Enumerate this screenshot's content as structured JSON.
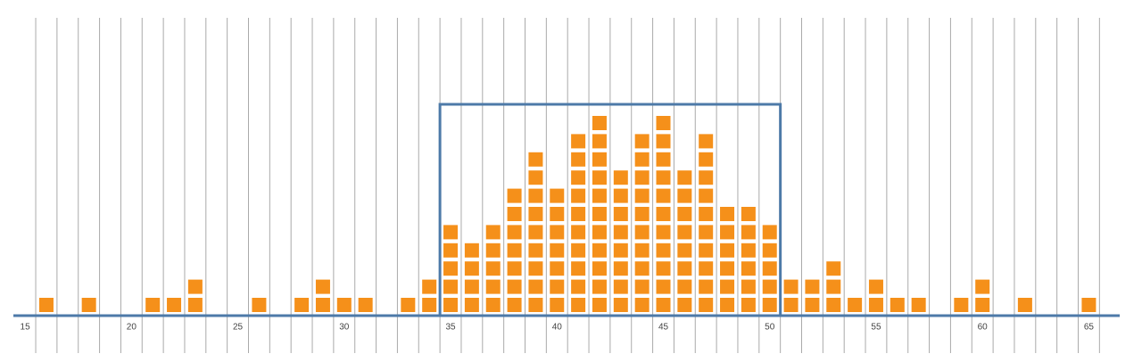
{
  "chart_data": {
    "type": "dot",
    "x": [
      15,
      16,
      17,
      18,
      19,
      20,
      21,
      22,
      23,
      24,
      25,
      26,
      27,
      28,
      29,
      30,
      31,
      32,
      33,
      34,
      35,
      36,
      37,
      38,
      39,
      40,
      41,
      42,
      43,
      44,
      45,
      46,
      47,
      48,
      49,
      50,
      51,
      52,
      53,
      54,
      55,
      56,
      57,
      58,
      59,
      60,
      61,
      62,
      63,
      64,
      65
    ],
    "values": [
      0,
      1,
      0,
      1,
      0,
      0,
      1,
      1,
      2,
      0,
      0,
      1,
      0,
      1,
      2,
      1,
      1,
      0,
      1,
      2,
      5,
      4,
      5,
      7,
      9,
      7,
      10,
      11,
      8,
      10,
      11,
      8,
      10,
      6,
      6,
      5,
      2,
      2,
      3,
      1,
      2,
      1,
      1,
      0,
      1,
      2,
      0,
      1,
      0,
      0,
      1
    ],
    "color": "#f5901a",
    "xlim": [
      14.45,
      66.45
    ],
    "xticks": [
      15,
      20,
      25,
      30,
      35,
      40,
      45,
      50,
      55,
      60,
      65
    ],
    "highlight_range": [
      34.5,
      50.5
    ],
    "highlight_color": "#4d7aa8",
    "axis_color": "#4d7aa8"
  }
}
